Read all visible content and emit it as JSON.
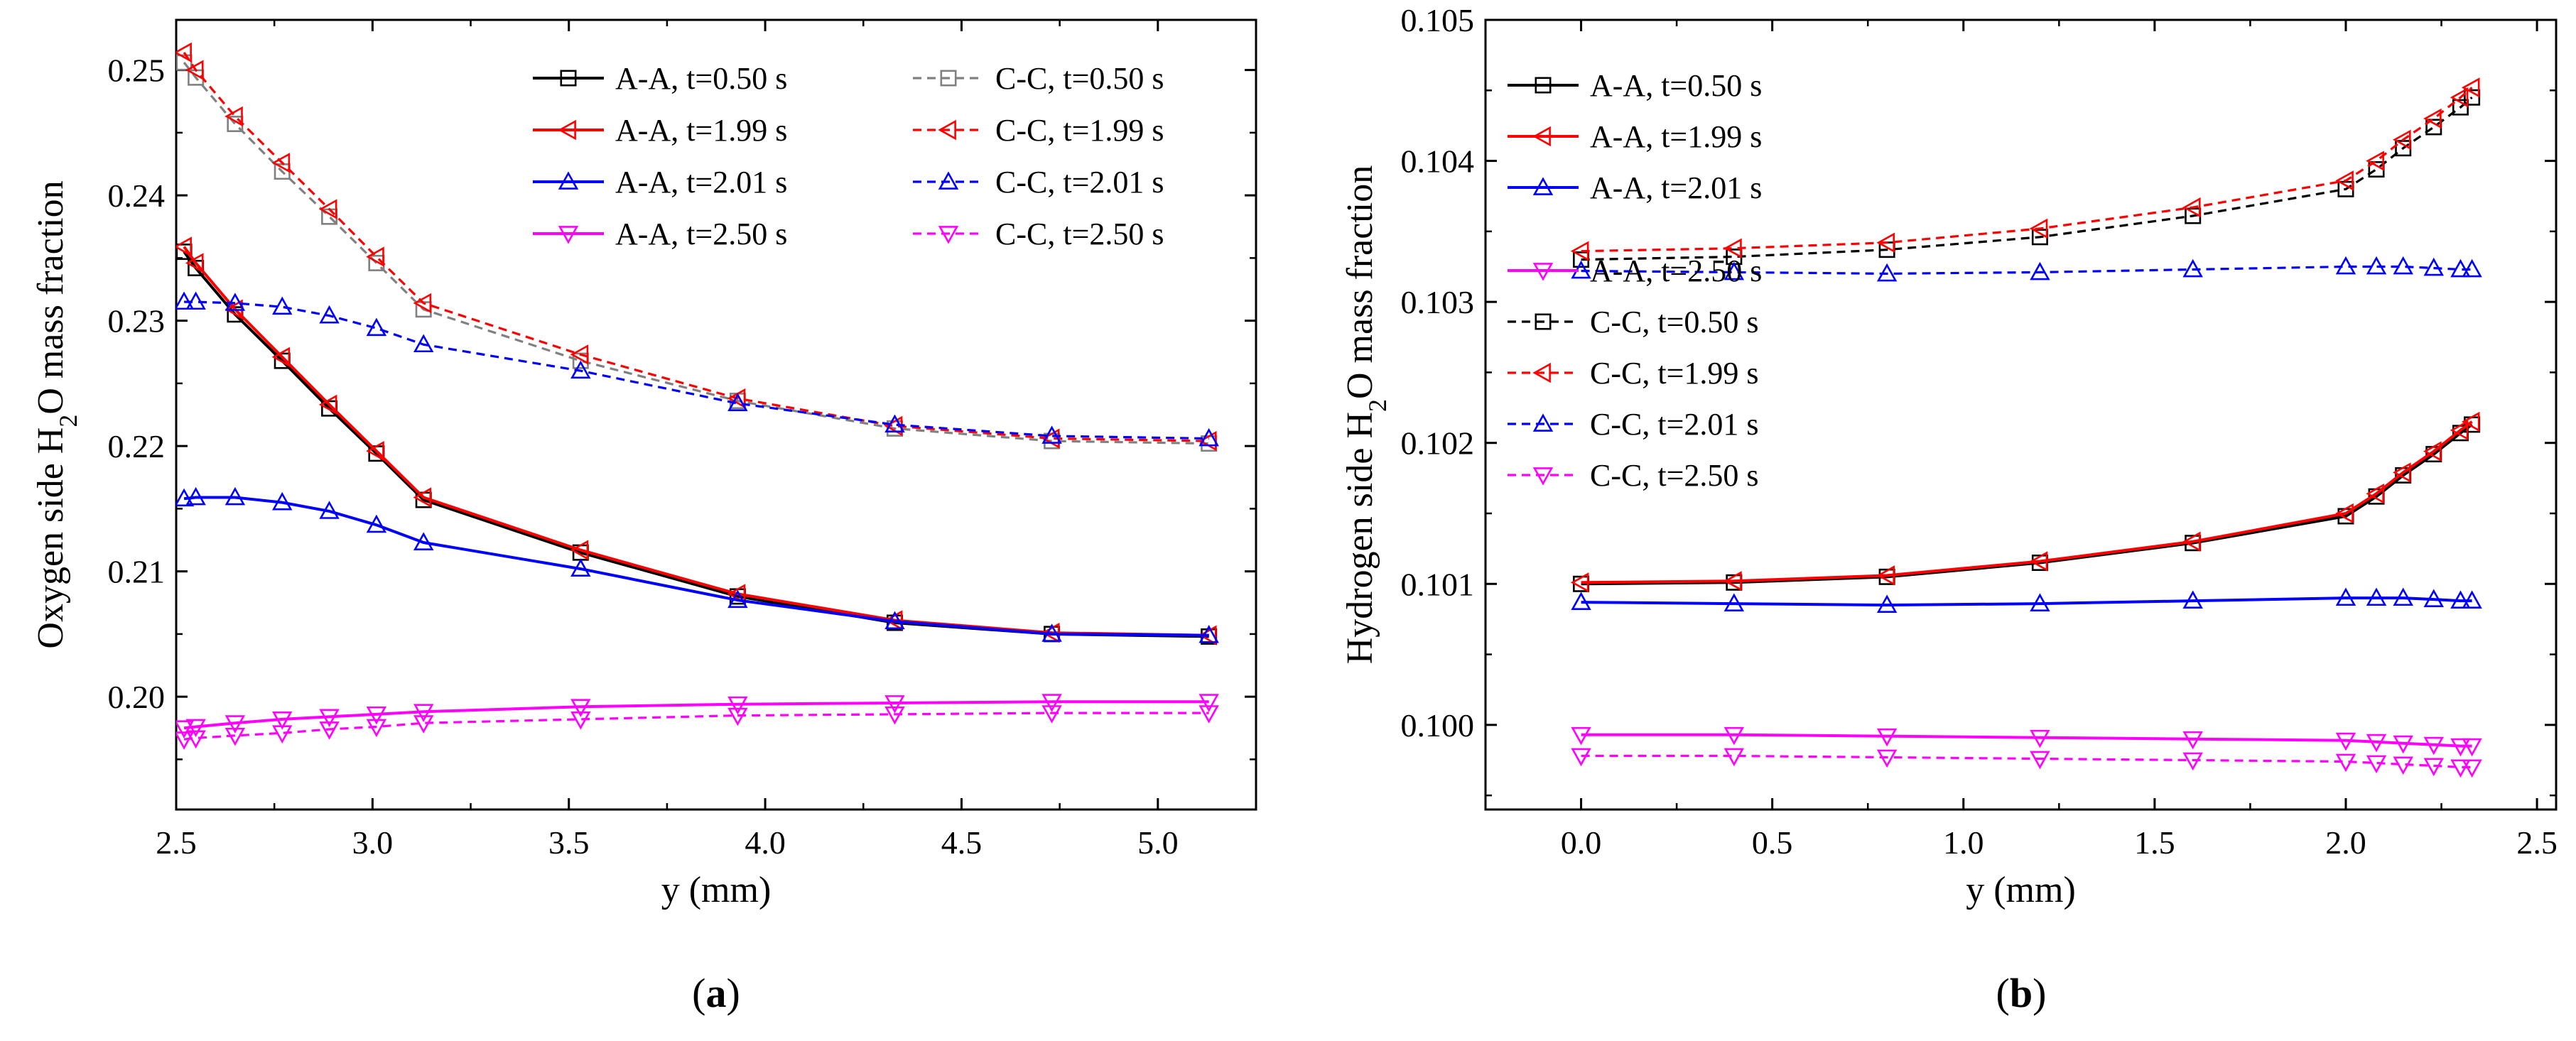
{
  "chart_data": [
    {
      "type": "line",
      "panel_label": "a",
      "ylabel": {
        "pre": "Oxygen side H",
        "sub": "2",
        "post": "O mass fraction"
      },
      "xlabel": "y (mm)",
      "xlim": [
        2.5,
        5.25
      ],
      "ylim": [
        0.191,
        0.254
      ],
      "xticks": [
        2.5,
        3.0,
        3.5,
        4.0,
        4.5,
        5.0
      ],
      "xtick_labels": [
        "2.5",
        "3.0",
        "3.5",
        "4.0",
        "4.5",
        "5.0"
      ],
      "yticks": [
        0.2,
        0.21,
        0.22,
        0.23,
        0.24,
        0.25
      ],
      "ytick_labels": [
        "0.20",
        "0.21",
        "0.22",
        "0.23",
        "0.24",
        "0.25"
      ],
      "legend_position": "top-right",
      "legend_columns": 2,
      "series": [
        {
          "name": "A-A, t=0.50 s",
          "color": "#000000",
          "dash": "solid",
          "marker": "square",
          "x": [
            2.52,
            2.55,
            2.65,
            2.77,
            2.89,
            3.01,
            3.13,
            3.53,
            3.93,
            4.33,
            4.73,
            5.13
          ],
          "y": [
            0.2355,
            0.2342,
            0.2305,
            0.2268,
            0.223,
            0.2194,
            0.2157,
            0.2115,
            0.208,
            0.2059,
            0.205,
            0.2048
          ]
        },
        {
          "name": "A-A, t=1.99 s",
          "color": "#ff0000",
          "dash": "solid",
          "marker": "triangle-left",
          "x": [
            2.52,
            2.55,
            2.65,
            2.77,
            2.89,
            3.01,
            3.13,
            3.53,
            3.93,
            4.33,
            4.73,
            5.13
          ],
          "y": [
            0.2359,
            0.2346,
            0.2309,
            0.2271,
            0.2233,
            0.2196,
            0.2159,
            0.2117,
            0.2082,
            0.2061,
            0.2051,
            0.2049
          ]
        },
        {
          "name": "A-A, t=2.01 s",
          "color": "#0000ff",
          "dash": "solid",
          "marker": "triangle-up",
          "x": [
            2.52,
            2.55,
            2.65,
            2.77,
            2.89,
            3.01,
            3.13,
            3.53,
            3.93,
            4.33,
            4.73,
            5.13
          ],
          "y": [
            0.2158,
            0.2159,
            0.2159,
            0.2155,
            0.2148,
            0.2137,
            0.2123,
            0.2102,
            0.2077,
            0.206,
            0.205,
            0.2049
          ]
        },
        {
          "name": "A-A, t=2.50 s",
          "color": "#ff00ff",
          "dash": "solid",
          "marker": "triangle-down",
          "x": [
            2.52,
            2.55,
            2.65,
            2.77,
            2.89,
            3.01,
            3.13,
            3.53,
            3.93,
            4.33,
            4.73,
            5.13
          ],
          "y": [
            0.1975,
            0.1976,
            0.1979,
            0.1982,
            0.1984,
            0.1986,
            0.1988,
            0.1992,
            0.1994,
            0.1995,
            0.1996,
            0.1996
          ]
        },
        {
          "name": "C-C, t=0.50 s",
          "color": "#808080",
          "dash": "dash",
          "marker": "square",
          "x": [
            2.52,
            2.55,
            2.65,
            2.77,
            2.89,
            3.01,
            3.13,
            3.53,
            3.93,
            4.33,
            4.73,
            5.13
          ],
          "y": [
            0.2506,
            0.2494,
            0.2457,
            0.2419,
            0.2383,
            0.2346,
            0.2309,
            0.2268,
            0.2236,
            0.2214,
            0.2204,
            0.2202
          ]
        },
        {
          "name": "C-C, t=1.99 s",
          "color": "#ff0000",
          "dash": "dash",
          "marker": "triangle-left",
          "x": [
            2.52,
            2.55,
            2.65,
            2.77,
            2.89,
            3.01,
            3.13,
            3.53,
            3.93,
            4.33,
            4.73,
            5.13
          ],
          "y": [
            0.2514,
            0.25,
            0.2463,
            0.2426,
            0.2389,
            0.2351,
            0.2314,
            0.2273,
            0.2238,
            0.2216,
            0.2206,
            0.2204
          ]
        },
        {
          "name": "C-C, t=2.01 s",
          "color": "#0000ff",
          "dash": "dash",
          "marker": "triangle-up",
          "x": [
            2.52,
            2.55,
            2.65,
            2.77,
            2.89,
            3.01,
            3.13,
            3.53,
            3.93,
            4.33,
            4.73,
            5.13
          ],
          "y": [
            0.2315,
            0.2315,
            0.2314,
            0.2311,
            0.2304,
            0.2294,
            0.2281,
            0.226,
            0.2234,
            0.2217,
            0.2208,
            0.2206
          ]
        },
        {
          "name": "C-C, t=2.50 s",
          "color": "#ff00ff",
          "dash": "dash",
          "marker": "triangle-down",
          "x": [
            2.52,
            2.55,
            2.65,
            2.77,
            2.89,
            3.01,
            3.13,
            3.53,
            3.93,
            4.33,
            4.73,
            5.13
          ],
          "y": [
            0.1966,
            0.1967,
            0.1969,
            0.1971,
            0.1974,
            0.1976,
            0.1979,
            0.1982,
            0.1985,
            0.1986,
            0.1987,
            0.1987
          ]
        }
      ]
    },
    {
      "type": "line",
      "panel_label": "b",
      "ylabel": {
        "pre": "Hydrogen side H",
        "sub": "2",
        "post": "O mass fraction"
      },
      "xlabel": "y (mm)",
      "xlim": [
        -0.25,
        2.55
      ],
      "ylim": [
        0.0994,
        0.105
      ],
      "xticks": [
        0.0,
        0.5,
        1.0,
        1.5,
        2.0,
        2.5
      ],
      "xtick_labels": [
        "0.0",
        "0.5",
        "1.0",
        "1.5",
        "2.0",
        "2.5"
      ],
      "yticks": [
        0.1,
        0.101,
        0.102,
        0.103,
        0.104,
        0.105
      ],
      "ytick_labels": [
        "0.100",
        "0.101",
        "0.102",
        "0.103",
        "0.104",
        "0.105"
      ],
      "legend_position": "top-left",
      "legend_columns": 1,
      "series": [
        {
          "name": "A-A, t=0.50 s",
          "color": "#000000",
          "dash": "solid",
          "marker": "square",
          "x": [
            0.0,
            0.4,
            0.8,
            1.2,
            1.6,
            2.0,
            2.08,
            2.15,
            2.23,
            2.3,
            2.33
          ],
          "y": [
            0.101,
            0.10101,
            0.10105,
            0.10115,
            0.10129,
            0.10148,
            0.10162,
            0.10177,
            0.10192,
            0.10207,
            0.10213
          ]
        },
        {
          "name": "A-A, t=1.99 s",
          "color": "#ff0000",
          "dash": "solid",
          "marker": "triangle-left",
          "x": [
            0.0,
            0.4,
            0.8,
            1.2,
            1.6,
            2.0,
            2.08,
            2.15,
            2.23,
            2.3,
            2.33
          ],
          "y": [
            0.10101,
            0.10102,
            0.10106,
            0.10116,
            0.1013,
            0.1015,
            0.10164,
            0.10179,
            0.10194,
            0.10209,
            0.10215
          ]
        },
        {
          "name": "A-A, t=2.01 s",
          "color": "#0000ff",
          "dash": "solid",
          "marker": "triangle-up",
          "x": [
            0.0,
            0.4,
            0.8,
            1.2,
            1.6,
            2.0,
            2.08,
            2.15,
            2.23,
            2.3,
            2.33
          ],
          "y": [
            0.10087,
            0.10086,
            0.10085,
            0.10086,
            0.10088,
            0.1009,
            0.1009,
            0.1009,
            0.10089,
            0.10088,
            0.10088
          ]
        },
        {
          "name": "A-A, t=2.50 s",
          "color": "#ff00ff",
          "dash": "solid",
          "marker": "triangle-down",
          "x": [
            0.0,
            0.4,
            0.8,
            1.2,
            1.6,
            2.0,
            2.08,
            2.15,
            2.23,
            2.3,
            2.33
          ],
          "y": [
            0.09993,
            0.09993,
            0.09992,
            0.09991,
            0.0999,
            0.09989,
            0.09988,
            0.09987,
            0.09986,
            0.09985,
            0.09985
          ]
        },
        {
          "name": "C-C, t=0.50 s",
          "color": "#000000",
          "dash": "dash",
          "marker": "square",
          "x": [
            0.0,
            0.4,
            0.8,
            1.2,
            1.6,
            2.0,
            2.08,
            2.15,
            2.23,
            2.3,
            2.33
          ],
          "y": [
            0.1033,
            0.10332,
            0.10337,
            0.10346,
            0.10361,
            0.1038,
            0.10394,
            0.10409,
            0.10424,
            0.10438,
            0.10445
          ]
        },
        {
          "name": "C-C, t=1.99 s",
          "color": "#ff0000",
          "dash": "dash",
          "marker": "triangle-left",
          "x": [
            0.0,
            0.4,
            0.8,
            1.2,
            1.6,
            2.0,
            2.08,
            2.15,
            2.23,
            2.3,
            2.33
          ],
          "y": [
            0.10336,
            0.10338,
            0.10342,
            0.10352,
            0.10367,
            0.10386,
            0.104,
            0.10415,
            0.1043,
            0.10445,
            0.10452
          ]
        },
        {
          "name": "C-C, t=2.01 s",
          "color": "#0000ff",
          "dash": "dash",
          "marker": "triangle-up",
          "x": [
            0.0,
            0.4,
            0.8,
            1.2,
            1.6,
            2.0,
            2.08,
            2.15,
            2.23,
            2.3,
            2.33
          ],
          "y": [
            0.10322,
            0.10321,
            0.1032,
            0.10321,
            0.10323,
            0.10325,
            0.10325,
            0.10325,
            0.10324,
            0.10323,
            0.10323
          ]
        },
        {
          "name": "C-C, t=2.50 s",
          "color": "#ff00ff",
          "dash": "dash",
          "marker": "triangle-down",
          "x": [
            0.0,
            0.4,
            0.8,
            1.2,
            1.6,
            2.0,
            2.08,
            2.15,
            2.23,
            2.3,
            2.33
          ],
          "y": [
            0.09978,
            0.09978,
            0.09977,
            0.09976,
            0.09975,
            0.09974,
            0.09973,
            0.09972,
            0.09971,
            0.0997,
            0.0997
          ]
        }
      ]
    }
  ]
}
